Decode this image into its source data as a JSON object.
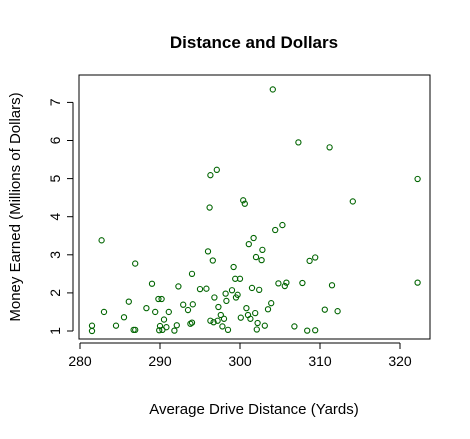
{
  "chart_data": {
    "type": "scatter",
    "title": "Distance and Dollars",
    "xlabel": "Average Drive Distance (Yards)",
    "ylabel": "Money Earned (Millions of Dollars)",
    "xlim": [
      280,
      323
    ],
    "ylim": [
      0.8,
      7.5
    ],
    "xticks": [
      280,
      290,
      300,
      310,
      320
    ],
    "yticks": [
      1,
      2,
      3,
      4,
      5,
      6,
      7
    ],
    "grid": false,
    "legend": "none",
    "point_color": "#006400",
    "marker": "open-circle",
    "points": [
      [
        281.5,
        1.0
      ],
      [
        281.5,
        1.14
      ],
      [
        282.7,
        3.38
      ],
      [
        283.0,
        1.5
      ],
      [
        284.5,
        1.14
      ],
      [
        285.5,
        1.36
      ],
      [
        286.1,
        1.77
      ],
      [
        286.7,
        1.03
      ],
      [
        286.9,
        1.03
      ],
      [
        286.9,
        2.77
      ],
      [
        288.3,
        1.6
      ],
      [
        289.0,
        2.24
      ],
      [
        289.4,
        1.5
      ],
      [
        289.8,
        1.84
      ],
      [
        289.9,
        1.02
      ],
      [
        290.0,
        1.13
      ],
      [
        290.2,
        1.84
      ],
      [
        290.3,
        1.03
      ],
      [
        290.5,
        1.3
      ],
      [
        290.8,
        1.1
      ],
      [
        291.1,
        1.5
      ],
      [
        291.8,
        1.01
      ],
      [
        292.1,
        1.15
      ],
      [
        292.3,
        2.17
      ],
      [
        292.9,
        1.69
      ],
      [
        293.5,
        1.55
      ],
      [
        293.8,
        1.19
      ],
      [
        294.0,
        1.22
      ],
      [
        294.0,
        2.5
      ],
      [
        294.1,
        1.7
      ],
      [
        295.0,
        2.1
      ],
      [
        295.8,
        2.11
      ],
      [
        296.0,
        3.09
      ],
      [
        296.2,
        4.24
      ],
      [
        296.3,
        5.09
      ],
      [
        296.3,
        1.27
      ],
      [
        296.6,
        2.85
      ],
      [
        296.7,
        1.23
      ],
      [
        296.8,
        1.88
      ],
      [
        297.1,
        5.23
      ],
      [
        297.2,
        1.27
      ],
      [
        297.3,
        1.63
      ],
      [
        297.6,
        1.42
      ],
      [
        297.8,
        1.12
      ],
      [
        298.0,
        1.32
      ],
      [
        298.2,
        1.98
      ],
      [
        298.3,
        1.79
      ],
      [
        298.5,
        1.03
      ],
      [
        299.0,
        2.07
      ],
      [
        299.2,
        2.68
      ],
      [
        299.4,
        2.37
      ],
      [
        299.5,
        1.88
      ],
      [
        299.7,
        1.95
      ],
      [
        300.0,
        2.37
      ],
      [
        300.1,
        1.35
      ],
      [
        300.4,
        4.43
      ],
      [
        300.6,
        4.34
      ],
      [
        300.8,
        1.6
      ],
      [
        301.0,
        1.42
      ],
      [
        301.1,
        3.28
      ],
      [
        301.3,
        1.32
      ],
      [
        301.5,
        2.13
      ],
      [
        301.7,
        3.44
      ],
      [
        301.9,
        1.47
      ],
      [
        302.0,
        2.94
      ],
      [
        302.1,
        1.04
      ],
      [
        302.2,
        1.21
      ],
      [
        302.4,
        2.08
      ],
      [
        302.7,
        2.86
      ],
      [
        302.8,
        3.13
      ],
      [
        303.1,
        1.14
      ],
      [
        303.5,
        1.57
      ],
      [
        303.9,
        1.73
      ],
      [
        304.1,
        7.34
      ],
      [
        304.4,
        3.65
      ],
      [
        304.8,
        2.25
      ],
      [
        305.3,
        3.78
      ],
      [
        305.6,
        2.18
      ],
      [
        305.8,
        2.27
      ],
      [
        306.8,
        1.12
      ],
      [
        307.3,
        5.95
      ],
      [
        307.8,
        2.26
      ],
      [
        308.4,
        1.01
      ],
      [
        308.7,
        2.84
      ],
      [
        309.4,
        2.93
      ],
      [
        309.4,
        1.02
      ],
      [
        310.6,
        1.56
      ],
      [
        311.2,
        5.82
      ],
      [
        311.5,
        2.2
      ],
      [
        312.2,
        1.52
      ],
      [
        314.1,
        4.4
      ],
      [
        322.2,
        4.99
      ],
      [
        322.2,
        2.27
      ]
    ]
  }
}
